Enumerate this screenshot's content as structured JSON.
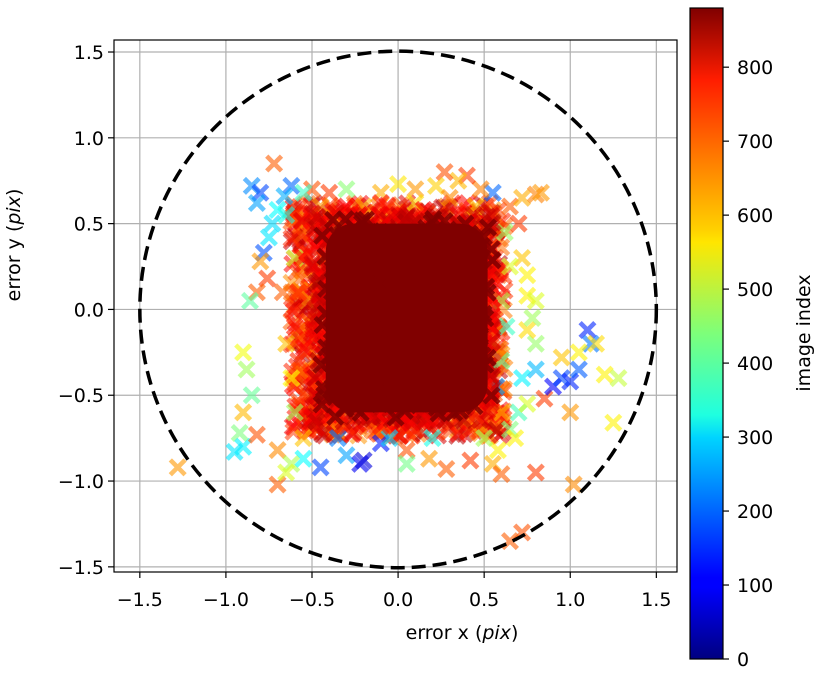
{
  "chart_data": {
    "type": "scatter",
    "title": "",
    "xlabel": "error x",
    "xlabel_unit": "pix",
    "ylabel": "error y",
    "ylabel_unit": "pix",
    "xlim": [
      -1.65,
      1.62
    ],
    "ylim": [
      -1.53,
      1.57
    ],
    "xticks": [
      -1.5,
      -1.0,
      -0.5,
      0.0,
      0.5,
      1.0,
      1.5
    ],
    "xtick_labels": [
      "−1.5",
      "−1.0",
      "−0.5",
      "0.0",
      "0.5",
      "1.0",
      "1.5"
    ],
    "yticks": [
      -1.5,
      -1.0,
      -0.5,
      0.0,
      0.5,
      1.0,
      1.5
    ],
    "ytick_labels": [
      "−1.5",
      "−1.0",
      "−0.5",
      "0.0",
      "0.5",
      "1.0",
      "1.5"
    ],
    "grid": true,
    "marker": "X",
    "marker_alpha": 0.6,
    "circle": {
      "center": [
        0.0,
        0.0
      ],
      "radius": 1.5,
      "style": "dashed",
      "color": "#000000"
    },
    "colorbar": {
      "label": "image index",
      "colormap": "jet",
      "range": [
        0,
        880
      ],
      "ticks": [
        0,
        100,
        200,
        300,
        400,
        500,
        600,
        700,
        800
      ],
      "tick_labels": [
        "0",
        "100",
        "200",
        "300",
        "400",
        "500",
        "600",
        "700",
        "800"
      ]
    },
    "dense_core": {
      "x_range": [
        -0.42,
        0.52
      ],
      "y_range": [
        -0.6,
        0.5
      ],
      "index": 880
    },
    "points": [
      [
        -0.72,
        0.85,
        690
      ],
      [
        -0.85,
        0.72,
        230
      ],
      [
        -0.8,
        0.68,
        170
      ],
      [
        -0.62,
        0.72,
        200
      ],
      [
        -0.66,
        0.66,
        260
      ],
      [
        -0.82,
        0.62,
        250
      ],
      [
        -0.7,
        0.58,
        330
      ],
      [
        -0.73,
        0.5,
        300
      ],
      [
        -0.75,
        0.42,
        310
      ],
      [
        -0.78,
        0.33,
        180
      ],
      [
        -0.8,
        0.28,
        640
      ],
      [
        -0.76,
        0.18,
        720
      ],
      [
        -0.82,
        0.1,
        690
      ],
      [
        -0.86,
        0.05,
        410
      ],
      [
        -0.9,
        -0.25,
        540
      ],
      [
        -0.88,
        -0.35,
        470
      ],
      [
        -0.85,
        -0.5,
        420
      ],
      [
        -0.9,
        -0.6,
        610
      ],
      [
        -0.92,
        -0.72,
        440
      ],
      [
        -0.9,
        -0.8,
        320
      ],
      [
        -0.95,
        -0.83,
        310
      ],
      [
        -0.82,
        -0.73,
        700
      ],
      [
        -0.7,
        -0.82,
        650
      ],
      [
        -0.62,
        -0.9,
        480
      ],
      [
        -0.55,
        -0.87,
        330
      ],
      [
        -0.45,
        -0.92,
        170
      ],
      [
        -0.3,
        -0.85,
        250
      ],
      [
        -0.22,
        -0.9,
        100
      ],
      [
        -0.2,
        -0.88,
        80
      ],
      [
        -0.1,
        -0.78,
        130
      ],
      [
        0.05,
        -0.82,
        700
      ],
      [
        0.18,
        -0.87,
        640
      ],
      [
        0.28,
        -0.93,
        690
      ],
      [
        0.42,
        -0.88,
        720
      ],
      [
        0.55,
        -0.9,
        620
      ],
      [
        0.58,
        -0.82,
        560
      ],
      [
        0.65,
        -0.7,
        440
      ],
      [
        0.7,
        -0.6,
        390
      ],
      [
        0.75,
        -0.55,
        520
      ],
      [
        0.85,
        -0.52,
        720
      ],
      [
        0.9,
        -0.45,
        110
      ],
      [
        0.95,
        -0.4,
        170
      ],
      [
        1.0,
        -0.42,
        140
      ],
      [
        1.05,
        -0.35,
        190
      ],
      [
        1.1,
        -0.12,
        140
      ],
      [
        1.12,
        -0.2,
        210
      ],
      [
        1.05,
        -0.25,
        560
      ],
      [
        0.95,
        -0.28,
        600
      ],
      [
        1.0,
        -0.6,
        640
      ],
      [
        1.2,
        -0.38,
        560
      ],
      [
        1.28,
        -0.4,
        500
      ],
      [
        1.25,
        -0.66,
        560
      ],
      [
        1.15,
        -0.2,
        580
      ],
      [
        0.8,
        -0.35,
        270
      ],
      [
        0.72,
        -0.4,
        320
      ],
      [
        0.8,
        -0.2,
        460
      ],
      [
        0.75,
        -0.12,
        580
      ],
      [
        0.75,
        0.08,
        560
      ],
      [
        0.8,
        0.05,
        520
      ],
      [
        0.78,
        -0.05,
        470
      ],
      [
        0.75,
        0.2,
        560
      ],
      [
        0.72,
        0.3,
        600
      ],
      [
        0.7,
        0.5,
        720
      ],
      [
        0.65,
        0.6,
        690
      ],
      [
        0.72,
        0.65,
        620
      ],
      [
        0.8,
        0.67,
        660
      ],
      [
        0.83,
        0.68,
        640
      ],
      [
        0.55,
        0.68,
        200
      ],
      [
        0.48,
        0.7,
        660
      ],
      [
        0.4,
        0.78,
        720
      ],
      [
        0.35,
        0.75,
        610
      ],
      [
        0.27,
        0.8,
        700
      ],
      [
        0.22,
        0.72,
        590
      ],
      [
        0.1,
        0.7,
        640
      ],
      [
        0.0,
        0.73,
        570
      ],
      [
        -0.1,
        0.68,
        620
      ],
      [
        -0.3,
        0.7,
        450
      ],
      [
        -0.4,
        0.68,
        720
      ],
      [
        -0.5,
        0.7,
        700
      ],
      [
        -0.55,
        0.68,
        380
      ],
      [
        -1.28,
        -0.92,
        640
      ],
      [
        -0.7,
        -1.02,
        690
      ],
      [
        -0.65,
        -0.95,
        520
      ],
      [
        0.05,
        -0.9,
        430
      ],
      [
        0.6,
        -0.96,
        690
      ],
      [
        0.8,
        -0.95,
        720
      ],
      [
        1.02,
        -1.02,
        650
      ],
      [
        0.72,
        -1.3,
        700
      ],
      [
        0.65,
        -1.35,
        690
      ],
      [
        0.57,
        -0.45,
        250
      ],
      [
        0.6,
        -0.6,
        620
      ],
      [
        0.68,
        -0.75,
        560
      ],
      [
        -0.6,
        -0.6,
        470
      ],
      [
        -0.62,
        -0.4,
        550
      ],
      [
        -0.65,
        -0.2,
        600
      ],
      [
        -0.67,
        0.1,
        690
      ],
      [
        -0.6,
        0.3,
        500
      ],
      [
        -0.65,
        0.55,
        350
      ],
      [
        0.62,
        0.45,
        460
      ],
      [
        0.65,
        0.25,
        520
      ],
      [
        0.6,
        0.05,
        480
      ],
      [
        0.63,
        -0.1,
        380
      ],
      [
        0.6,
        -0.3,
        420
      ],
      [
        -0.55,
        -0.75,
        600
      ],
      [
        0.5,
        -0.75,
        470
      ],
      [
        0.2,
        -0.75,
        350
      ],
      [
        -0.05,
        -0.75,
        290
      ],
      [
        -0.35,
        -0.75,
        220
      ],
      [
        0.45,
        0.6,
        600
      ],
      [
        -0.45,
        0.6,
        640
      ],
      [
        0.1,
        0.62,
        580
      ],
      [
        -0.2,
        0.6,
        620
      ],
      [
        0.3,
        0.65,
        650
      ],
      [
        -0.35,
        0.5,
        700
      ],
      [
        -0.5,
        0.45,
        730
      ],
      [
        0.5,
        0.5,
        740
      ],
      [
        0.55,
        0.35,
        760
      ],
      [
        0.58,
        0.15,
        770
      ],
      [
        0.55,
        -0.05,
        760
      ],
      [
        0.55,
        -0.25,
        750
      ],
      [
        0.52,
        -0.45,
        740
      ],
      [
        0.45,
        -0.62,
        730
      ],
      [
        0.3,
        -0.68,
        745
      ],
      [
        0.1,
        -0.7,
        740
      ],
      [
        -0.1,
        -0.68,
        750
      ],
      [
        -0.3,
        -0.68,
        735
      ],
      [
        -0.45,
        -0.62,
        745
      ],
      [
        -0.55,
        -0.5,
        720
      ],
      [
        -0.58,
        -0.3,
        735
      ],
      [
        -0.6,
        -0.1,
        750
      ],
      [
        -0.58,
        0.1,
        745
      ],
      [
        -0.55,
        0.3,
        740
      ],
      [
        -0.5,
        0.52,
        760
      ],
      [
        -0.3,
        0.6,
        770
      ],
      [
        -0.1,
        0.62,
        760
      ],
      [
        0.15,
        0.58,
        770
      ],
      [
        0.35,
        0.55,
        775
      ],
      [
        -0.48,
        -0.4,
        780
      ],
      [
        0.48,
        -0.35,
        780
      ],
      [
        -0.46,
        0.2,
        790
      ],
      [
        0.47,
        0.25,
        790
      ],
      [
        0.0,
        0.55,
        800
      ],
      [
        0.0,
        -0.62,
        800
      ]
    ]
  }
}
